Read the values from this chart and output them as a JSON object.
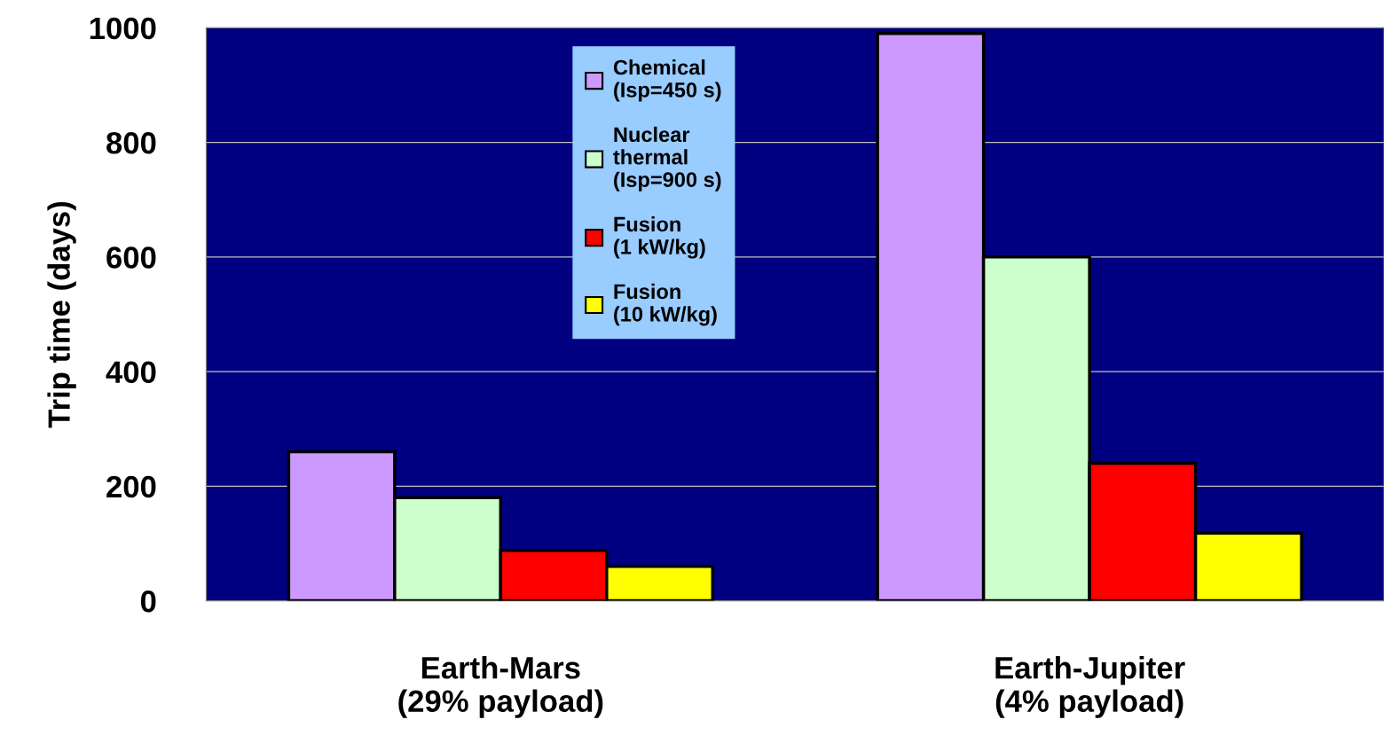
{
  "chart_data": {
    "type": "bar",
    "ylabel": "Trip time (days)",
    "categories": [
      "Earth-Mars\n(29% payload)",
      "Earth-Jupiter\n(4% payload)"
    ],
    "series": [
      {
        "name": "Chemical\n(Isp=450 s)",
        "color": "#cc99ff",
        "values": [
          260,
          990
        ]
      },
      {
        "name": "Nuclear\nthermal\n(Isp=900 s)",
        "color": "#ccffcc",
        "values": [
          180,
          600
        ]
      },
      {
        "name": "Fusion\n(1 kW/kg)",
        "color": "#ff0000",
        "values": [
          88,
          240
        ]
      },
      {
        "name": "Fusion\n(10 kW/kg)",
        "color": "#ffff00",
        "values": [
          60,
          118
        ]
      }
    ],
    "ylim": [
      0,
      1000
    ],
    "yticks": [
      0,
      200,
      400,
      600,
      800,
      1000
    ],
    "grid": "y",
    "legend": "top center"
  }
}
